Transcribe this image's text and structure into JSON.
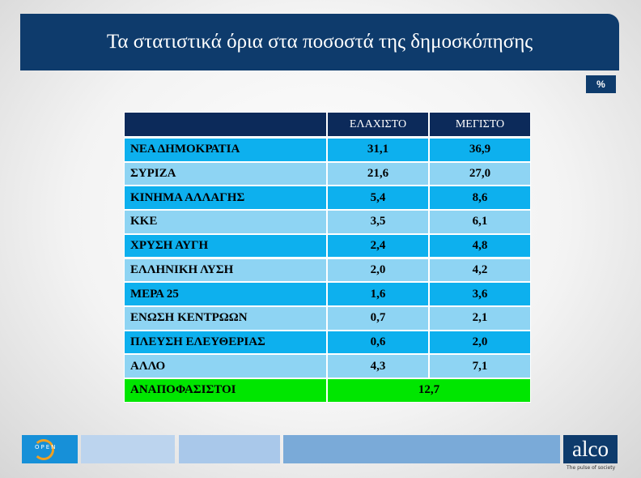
{
  "header": {
    "title": "Τα στατιστικά όρια στα ποσοστά της δημοσκόπησης",
    "unit": "%"
  },
  "table": {
    "columns": [
      "ΕΛΑΧΙΣΤΟ",
      "ΜΕΓΙΣΤΟ"
    ],
    "rows": [
      [
        "ΝΕΑ ΔΗΜΟΚΡΑΤΙΑ",
        "31,1",
        "36,9"
      ],
      [
        "ΣΥΡΙΖΑ",
        "21,6",
        "27,0"
      ],
      [
        "ΚΙΝΗΜΑ ΑΛΛΑΓΗΣ",
        "5,4",
        "8,6"
      ],
      [
        "ΚΚΕ",
        "3,5",
        "6,1"
      ],
      [
        "ΧΡΥΣΗ ΑΥΓΗ",
        "2,4",
        "4,8"
      ],
      [
        "ΕΛΛΗΝΙΚΗ ΛΥΣΗ",
        "2,0",
        "4,2"
      ],
      [
        "ΜΕΡΑ 25",
        "1,6",
        "3,6"
      ],
      [
        "ΕΝΩΣΗ ΚΕΝΤΡΩΩΝ",
        "0,7",
        "2,1"
      ],
      [
        "ΠΛΕΥΣΗ ΕΛΕΥΘΕΡΙΑΣ",
        "0,6",
        "2,0"
      ],
      [
        "ΑΛΛΟ",
        "4,3",
        "7,1"
      ]
    ],
    "total_row": [
      "ΑΝΑΠΟΦΑΣΙΣΤΟΙ",
      "12,7"
    ]
  },
  "footer": {
    "left_logo": "OPEN",
    "right_logo": "alco",
    "tagline": "The pulse of society"
  }
}
